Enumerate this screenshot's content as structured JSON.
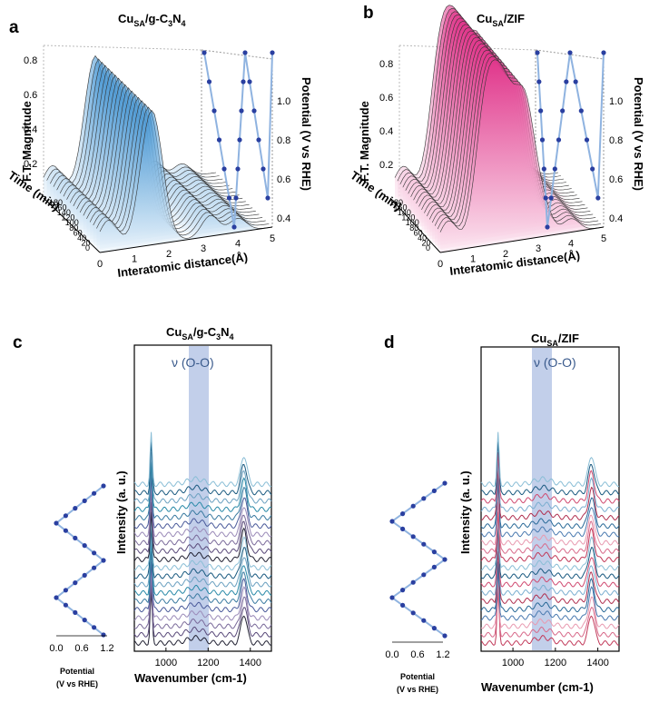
{
  "panels": {
    "a": {
      "letter": "a",
      "title": "CuSA/g-C3N4",
      "title_main": "Cu",
      "title_sub": "SA",
      "title_rest": "/g-C",
      "title_sub2": "3",
      "title_rest2": "N",
      "title_sub3": "4"
    },
    "b": {
      "letter": "b",
      "title_main": "Cu",
      "title_sub": "SA",
      "title_rest": "/ZIF"
    },
    "c": {
      "letter": "c",
      "title_main": "Cu",
      "title_sub": "SA",
      "title_rest": "/g-C",
      "title_sub2": "3",
      "title_rest2": "N",
      "title_sub3": "4"
    },
    "d": {
      "letter": "d",
      "title_main": "Cu",
      "title_sub": "SA",
      "title_rest": "/ZIF"
    }
  },
  "chart_data": [
    {
      "panel": "a",
      "type": "line",
      "title": "CuSA/g-C3N4",
      "xlabel": "Interatomic distance(Å)",
      "ylabel": "F.T. Magnitude",
      "zlabel": "Time (min)",
      "y2label": "Potential (V vs RHE)",
      "xlim": [
        0,
        5
      ],
      "ylim": [
        0,
        0.85
      ],
      "x_ticks": [
        "0",
        "1",
        "2",
        "3",
        "4",
        "5"
      ],
      "y_ticks": [
        "0.2",
        "0.4",
        "0.6",
        "0.8"
      ],
      "z_ticks": [
        "0",
        "20",
        "40",
        "60",
        "80",
        "100",
        "120",
        "140",
        "160",
        "180"
      ],
      "y2_ticks": [
        "0.4",
        "0.6",
        "0.8",
        "1.0"
      ],
      "peaks": [
        {
          "r": 1.5,
          "magnitude": 0.78
        }
      ],
      "color": "#3a8fd0"
    },
    {
      "panel": "b",
      "type": "line",
      "title": "CuSA/ZIF",
      "xlabel": "Interatomic distance(Å)",
      "ylabel": "F.T. Magnitude",
      "zlabel": "Time (min)",
      "y2label": "Potential (V vs RHE)",
      "xlim": [
        0,
        5
      ],
      "ylim": [
        0,
        0.85
      ],
      "x_ticks": [
        "0",
        "1",
        "2",
        "3",
        "4",
        "5"
      ],
      "y_ticks": [
        "0.2",
        "0.4",
        "0.6",
        "0.8"
      ],
      "z_ticks": [
        "0",
        "20",
        "40",
        "60",
        "80",
        "100",
        "120",
        "140",
        "160",
        "180"
      ],
      "y2_ticks": [
        "0.4",
        "0.6",
        "0.8",
        "1.0"
      ],
      "peaks": [
        {
          "r": 1.4,
          "magnitude": 0.82
        },
        {
          "r": 1.95,
          "magnitude": 0.75
        },
        {
          "r": 2.6,
          "magnitude": 0.78
        }
      ],
      "color": "#e0348a"
    },
    {
      "panel": "c",
      "type": "line",
      "title": "CuSA/g-C3N4",
      "xlabel": "Wavenumber (cm-1)",
      "ylabel": "Intensity (a. u.)",
      "xlim": [
        850,
        1500
      ],
      "x_ticks": [
        "1000",
        "1200",
        "1400"
      ],
      "band_label": "ν (O-O)",
      "band_range": [
        1090,
        1180
      ],
      "peaks": [
        930,
        1370
      ],
      "potential_axis": {
        "label": "Potential\n(V vs RHE)",
        "label1": "Potential",
        "label2": "(V vs RHE)",
        "ticks": [
          "0.0",
          "0.6",
          "1.2"
        ]
      },
      "n_spectra": 20
    },
    {
      "panel": "d",
      "type": "line",
      "title": "CuSA/ZIF",
      "xlabel": "Wavenumber (cm-1)",
      "ylabel": "Intensity (a. u.)",
      "xlim": [
        850,
        1500
      ],
      "x_ticks": [
        "1000",
        "1200",
        "1400"
      ],
      "band_label": "ν (O-O)",
      "band_range": [
        1090,
        1180
      ],
      "peaks": [
        930,
        1370
      ],
      "potential_axis": {
        "label1": "Potential",
        "label2": "(V vs RHE)",
        "ticks": [
          "0.0",
          "0.6",
          "1.2"
        ]
      },
      "n_spectra": 20
    }
  ]
}
